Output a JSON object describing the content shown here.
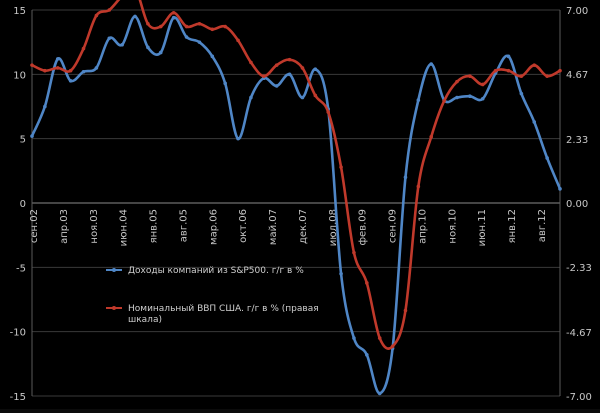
{
  "chart_data": {
    "type": "line",
    "x_labels": [
      "сен.02",
      "апр.03",
      "ноя.03",
      "июн.04",
      "янв.05",
      "авг.05",
      "мар.06",
      "окт.06",
      "май.07",
      "дек.07",
      "июл.08",
      "фев.09",
      "сен.09",
      "апр.10",
      "ноя.10",
      "июн.11",
      "янв.12",
      "авг.12"
    ],
    "y_left": {
      "min": -15,
      "max": 15,
      "ticks": [
        -15,
        -10,
        -5,
        0,
        5,
        10,
        15
      ]
    },
    "y_right": {
      "min": -7.0,
      "max": 7.0,
      "ticks": [
        "-7.00",
        "-4.67",
        "-2.33",
        "0.00",
        "2.33",
        "4.67",
        "7.00"
      ]
    },
    "series": [
      {
        "name": "Доходы компаний из S&P500. г/г в %",
        "axis": "left",
        "color": "#4f86c6",
        "values": [
          5.2,
          7.5,
          11.2,
          9.5,
          10.2,
          10.5,
          12.8,
          12.3,
          14.5,
          12.1,
          11.7,
          14.4,
          12.9,
          12.5,
          11.4,
          9.3,
          5.0,
          8.2,
          9.7,
          9.1,
          10.0,
          8.2,
          10.4,
          7.3,
          -5.5,
          -10.5,
          -11.8,
          -14.8,
          -11.3,
          2.0,
          8.0,
          10.8,
          8.0,
          8.2,
          8.3,
          8.1,
          10.1,
          11.4,
          8.5,
          6.3,
          3.5,
          1.1
        ]
      },
      {
        "name": "Номинальный ВВП США. г/г в % (правая шкала)",
        "axis": "right",
        "color": "#c0392b",
        "values": [
          5.0,
          4.8,
          4.9,
          4.8,
          5.6,
          6.8,
          7.0,
          7.5,
          7.8,
          6.5,
          6.4,
          6.9,
          6.4,
          6.5,
          6.3,
          6.4,
          5.9,
          5.1,
          4.6,
          5.0,
          5.2,
          4.9,
          3.9,
          3.3,
          1.3,
          -1.8,
          -2.9,
          -4.9,
          -5.2,
          -3.9,
          0.6,
          2.4,
          3.7,
          4.4,
          4.6,
          4.3,
          4.8,
          4.8,
          4.6,
          5.0,
          4.6,
          4.8
        ]
      }
    ]
  }
}
